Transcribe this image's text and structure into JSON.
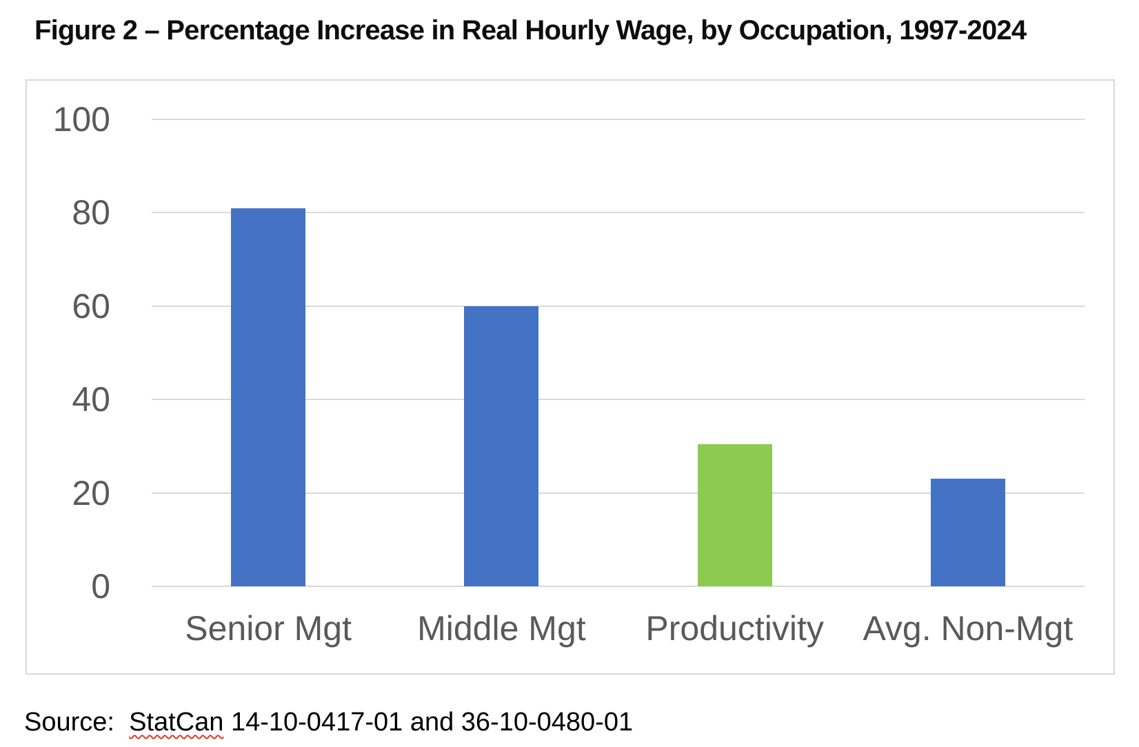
{
  "title": "Figure 2 – Percentage Increase in Real Hourly Wage, by Occupation, 1997-2024",
  "source": {
    "label": "Source:",
    "separator": "  ",
    "flagged_word": "StatCan",
    "rest": " 14-10-0417-01 and 36-10-0480-01"
  },
  "colors": {
    "bar_blue": "#4472C4",
    "bar_green": "#8DCB50",
    "axis_text": "#595959",
    "gridline": "#D9D9D9",
    "chart_border": "#D9D9D9",
    "title_text": "#0D0D0D",
    "squiggle_red": "#E23B22"
  },
  "chart_data": {
    "type": "bar",
    "title": "Figure 2 – Percentage Increase in Real Hourly Wage, by Occupation, 1997-2024",
    "categories": [
      "Senior Mgt",
      "Middle Mgt",
      "Productivity",
      "Avg. Non-Mgt"
    ],
    "values": [
      81,
      60,
      30.5,
      23
    ],
    "bar_colors": [
      "#4472C4",
      "#4472C4",
      "#8DCB50",
      "#4472C4"
    ],
    "xlabel": "",
    "ylabel": "",
    "ylim": [
      0,
      100
    ],
    "yticks": [
      0,
      20,
      40,
      60,
      80,
      100
    ],
    "grid": true,
    "legend": "none"
  }
}
